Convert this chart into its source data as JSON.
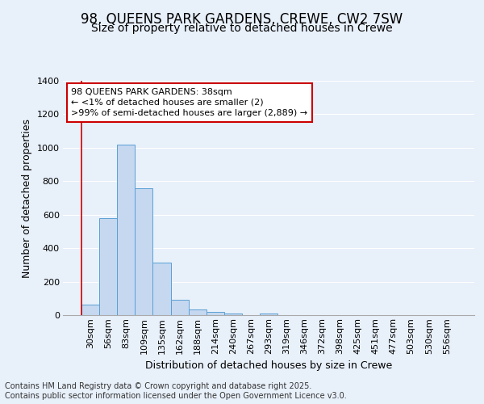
{
  "title": "98, QUEENS PARK GARDENS, CREWE, CW2 7SW",
  "subtitle": "Size of property relative to detached houses in Crewe",
  "xlabel": "Distribution of detached houses by size in Crewe",
  "ylabel": "Number of detached properties",
  "categories": [
    "30sqm",
    "56sqm",
    "83sqm",
    "109sqm",
    "135sqm",
    "162sqm",
    "188sqm",
    "214sqm",
    "240sqm",
    "267sqm",
    "293sqm",
    "319sqm",
    "346sqm",
    "372sqm",
    "398sqm",
    "425sqm",
    "451sqm",
    "477sqm",
    "503sqm",
    "530sqm",
    "556sqm"
  ],
  "values": [
    65,
    580,
    1020,
    760,
    315,
    90,
    35,
    20,
    10,
    0,
    10,
    0,
    0,
    0,
    0,
    0,
    0,
    0,
    0,
    0,
    0
  ],
  "bar_color": "#c5d8f0",
  "bar_edge_color": "#5a9fd4",
  "background_color": "#e8f0fa",
  "plot_bg_color": "#e8f0fa",
  "grid_color": "#ffffff",
  "ylim": [
    0,
    1400
  ],
  "yticks": [
    0,
    200,
    400,
    600,
    800,
    1000,
    1200,
    1400
  ],
  "annotation_line1": "98 QUEENS PARK GARDENS: 38sqm",
  "annotation_line2": "← <1% of detached houses are smaller (2)",
  "annotation_line3": ">99% of semi-detached houses are larger (2,889) →",
  "annotation_box_color": "#ffffff",
  "annotation_border_color": "#cc0000",
  "red_line_color": "#cc0000",
  "footer_text": "Contains HM Land Registry data © Crown copyright and database right 2025.\nContains public sector information licensed under the Open Government Licence v3.0.",
  "title_fontsize": 12,
  "subtitle_fontsize": 10,
  "axis_label_fontsize": 9,
  "tick_fontsize": 8,
  "annotation_fontsize": 8,
  "footer_fontsize": 7
}
